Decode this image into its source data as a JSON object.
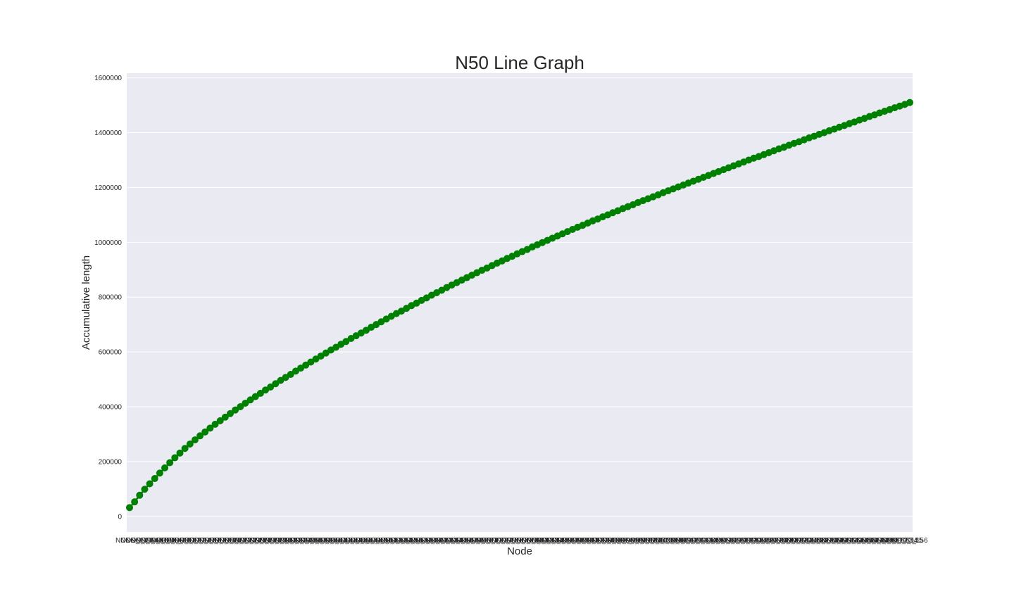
{
  "chart_data": {
    "type": "line",
    "title": "N50 Line Graph",
    "xlabel": "Node",
    "ylabel": "Accumulative length",
    "ylim": [
      -57000,
      1617000
    ],
    "yticks": [
      0,
      200000,
      400000,
      600000,
      800000,
      1000000,
      1200000,
      1400000,
      1600000
    ],
    "ytick_labels": [
      "0",
      "200000",
      "400000",
      "600000",
      "800000",
      "1000000",
      "1200000",
      "1400000",
      "1600000"
    ],
    "grid": true,
    "legend": false,
    "colors": {
      "background": "#eaeaf2",
      "grid": "#ffffff",
      "series": "#008000"
    },
    "x_first_label": "NODE_1",
    "x_last_label": "NODE_156",
    "x_count": 156,
    "series": [
      {
        "values": [
          32000,
          53000,
          77000,
          99000,
          119000,
          138000,
          158000,
          177000,
          196000,
          214000,
          231000,
          248000,
          264000,
          279000,
          294000,
          308000,
          322000,
          336000,
          349000,
          362000,
          375000,
          388000,
          400000,
          413000,
          425000,
          437000,
          449000,
          461000,
          472000,
          484000,
          496000,
          507000,
          518000,
          530000,
          541000,
          552000,
          563000,
          574000,
          585000,
          596000,
          607000,
          617000,
          628000,
          638000,
          649000,
          659000,
          669000,
          679000,
          690000,
          700000,
          710000,
          720000,
          730000,
          740000,
          749000,
          759000,
          769000,
          778000,
          788000,
          797000,
          807000,
          816000,
          825000,
          835000,
          844000,
          853000,
          862000,
          871000,
          880000,
          889000,
          898000,
          906000,
          915000,
          924000,
          932000,
          941000,
          949000,
          958000,
          966000,
          974000,
          983000,
          991000,
          999000,
          1007000,
          1015000,
          1023000,
          1031000,
          1039000,
          1047000,
          1055000,
          1062000,
          1070000,
          1078000,
          1085000,
          1093000,
          1100000,
          1108000,
          1115000,
          1123000,
          1130000,
          1137000,
          1145000,
          1152000,
          1159000,
          1166000,
          1173000,
          1181000,
          1188000,
          1195000,
          1202000,
          1209000,
          1216000,
          1223000,
          1230000,
          1237000,
          1244000,
          1251000,
          1258000,
          1265000,
          1272000,
          1279000,
          1286000,
          1293000,
          1300000,
          1307000,
          1313000,
          1320000,
          1327000,
          1334000,
          1341000,
          1347000,
          1354000,
          1361000,
          1367000,
          1374000,
          1381000,
          1387000,
          1394000,
          1400000,
          1407000,
          1413000,
          1420000,
          1426000,
          1433000,
          1439000,
          1446000,
          1452000,
          1459000,
          1465000,
          1472000,
          1478000,
          1484000,
          1491000,
          1497000,
          1503000,
          1510000
        ]
      }
    ]
  }
}
